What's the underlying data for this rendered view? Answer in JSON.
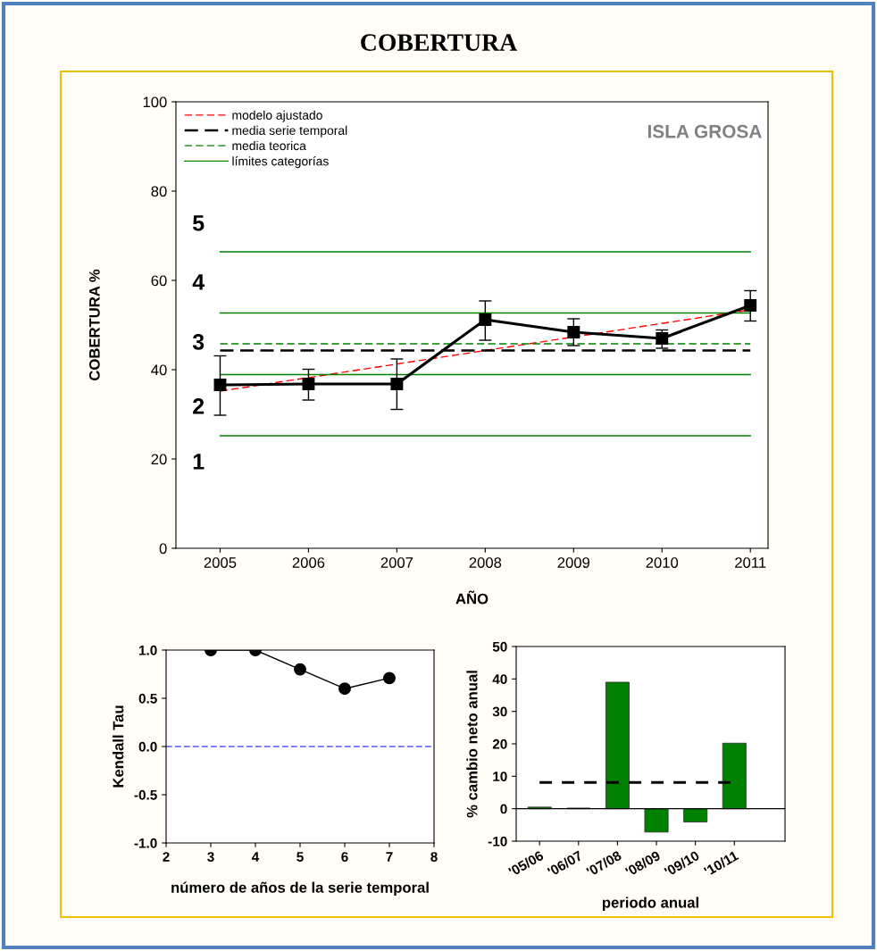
{
  "chart_data": [
    {
      "type": "line",
      "title": "COBERTURA",
      "xlabel": "AÑO",
      "ylabel": "COBERTURA %",
      "xlim": [
        2004.5,
        2011.2
      ],
      "xticks": [
        2005,
        2006,
        2007,
        2008,
        2009,
        2010,
        2011
      ],
      "ylim": [
        0,
        100
      ],
      "yticks": [
        0,
        20,
        40,
        60,
        80,
        100
      ],
      "grid": false,
      "legend": "top left",
      "series": [
        {
          "name": "modelo ajustado",
          "color": "#ff0000",
          "x": [
            2005,
            2011
          ],
          "values": [
            35.2,
            53.4
          ],
          "line_style": "dashed",
          "marker": "none"
        },
        {
          "name": "media serie temporal",
          "color": "#000000",
          "x": [
            2005,
            2011
          ],
          "values": [
            44.3,
            44.3
          ],
          "line_style": "dashed",
          "marker": "none"
        },
        {
          "name": "media teorica",
          "color": "#008000",
          "x": [
            2005,
            2011
          ],
          "values": [
            45.8,
            45.8
          ],
          "line_style": "dashed",
          "marker": "none"
        },
        {
          "name": "límites categorías",
          "color": "#008000",
          "x": [
            2005,
            2011
          ],
          "values": [
            25.2,
            25.2
          ],
          "line_style": "solid",
          "marker": "none"
        },
        {
          "color": "#008000",
          "x": [
            2005,
            2011
          ],
          "values": [
            38.9,
            38.9
          ],
          "line_style": "solid",
          "marker": "none"
        },
        {
          "color": "#008000",
          "x": [
            2005,
            2011
          ],
          "values": [
            52.7,
            52.7
          ],
          "line_style": "solid",
          "marker": "none"
        },
        {
          "color": "#008000",
          "x": [
            2005,
            2011
          ],
          "values": [
            66.4,
            66.4
          ],
          "line_style": "solid",
          "marker": "none"
        },
        {
          "color": "#000000",
          "x": [
            2005,
            2006,
            2007,
            2008,
            2009,
            2010,
            2011
          ],
          "values": [
            36.6,
            36.8,
            36.8,
            51.2,
            48.4,
            47.0,
            54.4
          ],
          "marker": "square",
          "line_style": "solid",
          "errors": [
            [
              29.8,
              43.1
            ],
            [
              33.2,
              40.1
            ],
            [
              31.1,
              42.4
            ],
            [
              46.6,
              55.4
            ],
            [
              45.4,
              51.4
            ],
            [
              44.8,
              48.9
            ],
            [
              50.9,
              57.7
            ]
          ]
        }
      ],
      "annotations": [
        "ISLA GROSA",
        "5",
        "4",
        "3",
        "2",
        "1"
      ]
    },
    {
      "type": "line",
      "xlabel": "número de años de la serie temporal",
      "ylabel": "Kendall Tau",
      "xlim": [
        2,
        8
      ],
      "xticks": [
        2,
        3,
        4,
        5,
        6,
        7,
        8
      ],
      "ylim": [
        -1,
        1
      ],
      "yticks": [
        {
          "value": -1,
          "label": "-1.0"
        },
        {
          "value": -0.5,
          "label": "-0.5"
        },
        {
          "value": 0,
          "label": "0.0"
        },
        {
          "value": 0.5,
          "label": "0.5"
        },
        {
          "value": 1,
          "label": "1.0"
        }
      ],
      "grid": false,
      "marker": "circle",
      "line_style": "solid",
      "series": [
        {
          "color": "#000000",
          "x": [
            3,
            4,
            5,
            6,
            7
          ],
          "values": [
            1.0,
            1.0,
            0.8,
            0.6,
            0.71
          ]
        }
      ],
      "ref_lines": [
        {
          "axis": "y",
          "value": 0,
          "color": "#0000ff",
          "line_style": "dashed"
        }
      ]
    },
    {
      "type": "bar",
      "xlabel": "periodo anual",
      "ylabel": "% cambio neto anual",
      "categories": [
        "'05/06",
        "'06/07",
        "'07/08",
        "'08/09",
        "'09/10",
        "'10/11"
      ],
      "values": [
        0.5,
        0.2,
        39,
        -7.2,
        -4.1,
        20.2
      ],
      "color": "#008000",
      "ylim": [
        -10,
        50
      ],
      "yticks": [
        -10,
        0,
        10,
        20,
        30,
        40,
        50
      ],
      "grid": false,
      "ref_lines": [
        {
          "axis": "y",
          "value": 0,
          "color": "#000000",
          "line_style": "solid"
        },
        {
          "axis": "y",
          "value": 8.1,
          "color": "#000000",
          "line_style": "dashed"
        }
      ]
    }
  ]
}
